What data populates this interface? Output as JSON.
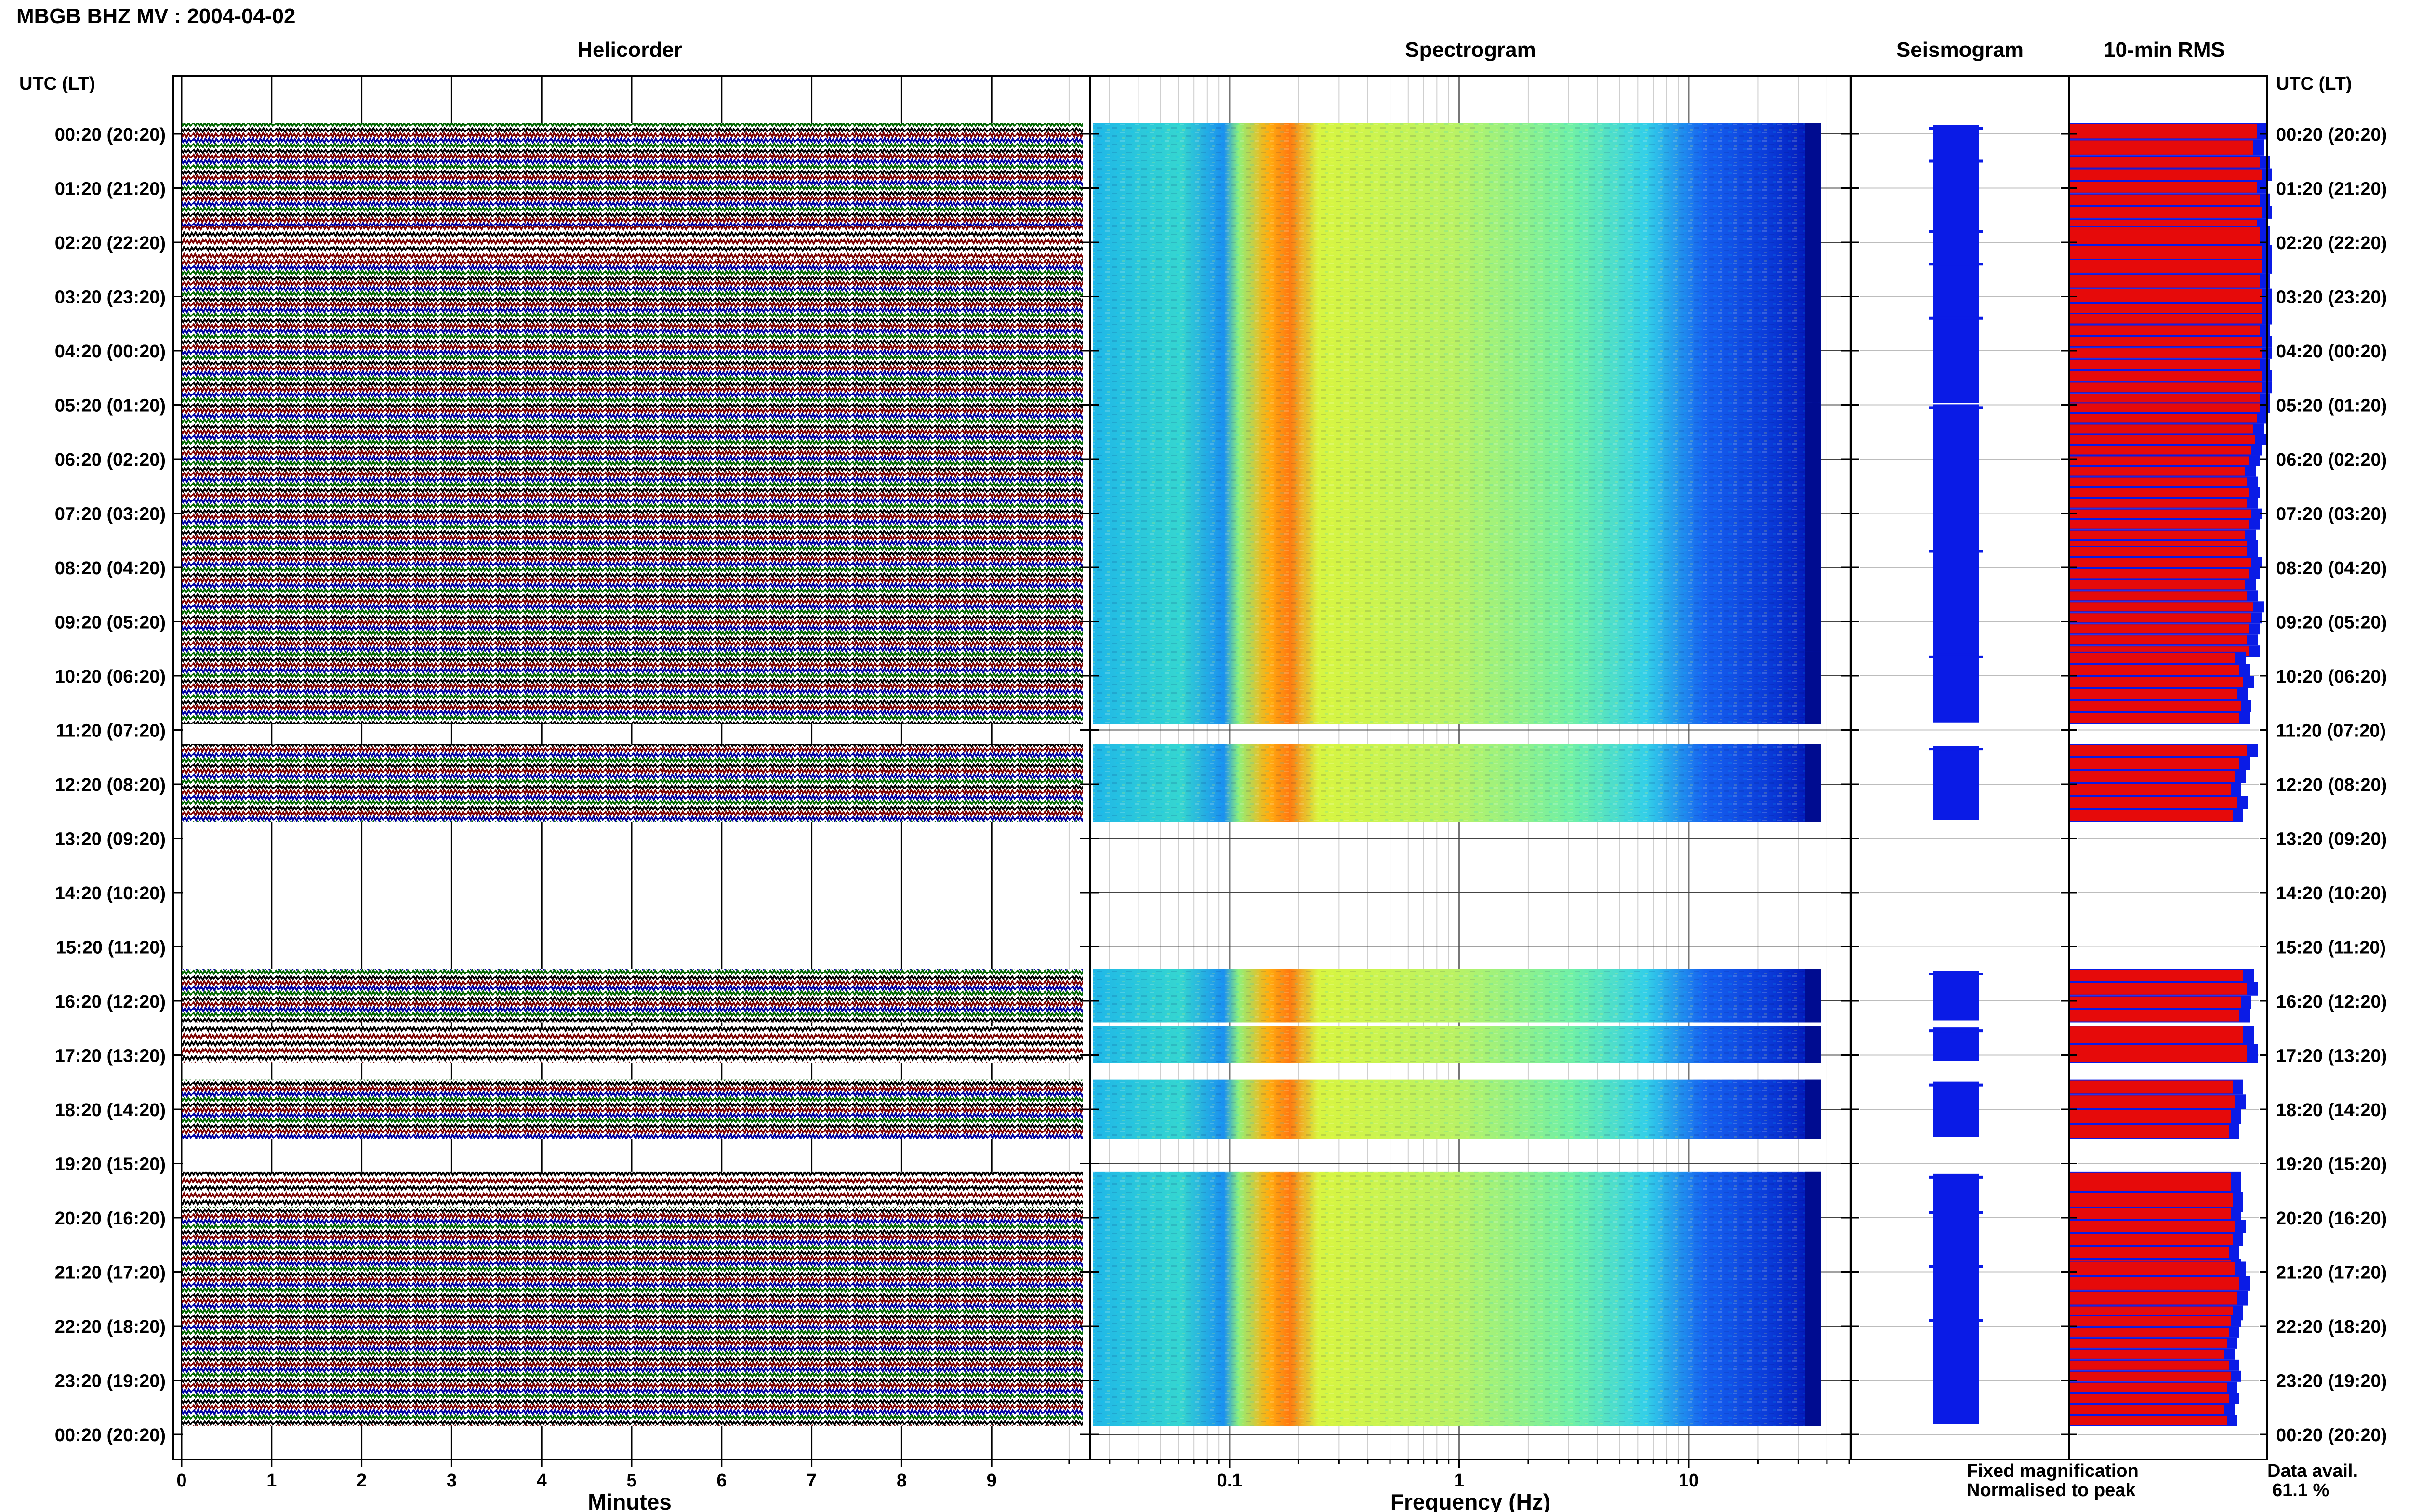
{
  "header": {
    "title": "MBGB BHZ MV : 2004-04-02"
  },
  "panels": {
    "helicorder_title": "Helicorder",
    "spectrogram_title": "Spectrogram",
    "seismogram_title": "Seismogram",
    "rms_title": "10-min RMS",
    "axis_left_label": "UTC (LT)",
    "axis_right_label": "UTC (LT)"
  },
  "legend": {
    "fixed": "Fixed magnification",
    "normalised": "Normalised to peak",
    "fixed_color": "#0a1be6",
    "normalised_color": "#e60a0a"
  },
  "availability": {
    "label": "Data avail.",
    "value": "61.1 %"
  },
  "chart_data": {
    "type": "table",
    "time_labels": [
      "00:20 (20:20)",
      "01:20 (21:20)",
      "02:20 (22:20)",
      "03:20 (23:20)",
      "04:20 (00:20)",
      "05:20 (01:20)",
      "06:20 (02:20)",
      "07:20 (03:20)",
      "08:20 (04:20)",
      "09:20 (05:20)",
      "10:20 (06:20)",
      "11:20 (07:20)",
      "12:20 (08:20)",
      "13:20 (09:20)",
      "14:20 (10:20)",
      "15:20 (11:20)",
      "16:20 (12:20)",
      "17:20 (13:20)",
      "18:20 (14:20)",
      "19:20 (15:20)",
      "20:20 (16:20)",
      "21:20 (17:20)",
      "22:20 (18:20)",
      "23:20 (19:20)",
      "00:20 (20:20)"
    ],
    "helicorder": {
      "xlabel": "Minutes",
      "xticks": [
        "0",
        "1",
        "2",
        "3",
        "4",
        "5",
        "6",
        "7",
        "8",
        "9"
      ],
      "xlim": [
        0,
        10
      ],
      "trace_colors": [
        "#000000",
        "#7a0000",
        "#0000a0",
        "#006400"
      ]
    },
    "spectrogram": {
      "xlabel": "Frequency (Hz)",
      "xscale": "log",
      "xlim": [
        0.02,
        50
      ],
      "xticks": [
        "0.1",
        "1",
        "10"
      ],
      "colormap": [
        "#00008b",
        "#0033ff",
        "#00bfff",
        "#7fffcf",
        "#dfff3f",
        "#ffd000",
        "#ff4000"
      ]
    },
    "rms": {
      "series": [
        {
          "name": "Fixed magnification",
          "color": "#0a1be6"
        },
        {
          "name": "Normalised to peak",
          "color": "#e60a0a"
        }
      ]
    },
    "data_availability_percent": 61.1,
    "segments": [
      {
        "start_hour": 0.0,
        "hours": 0.5,
        "rms_norm": [
          0.97,
          0.95,
          0.93
        ]
      },
      {
        "start_hour": 0.6,
        "hours": 1.0,
        "rms_norm": [
          0.98,
          0.99,
          0.97,
          0.98,
          0.99,
          0.97
        ]
      },
      {
        "start_hour": 1.9,
        "hours": 0.3,
        "rms_norm": [
          0.98,
          0.99
        ]
      },
      {
        "start_hour": 2.5,
        "hours": 0.7,
        "rms_norm": [
          0.99,
          0.98,
          0.99,
          0.99
        ]
      },
      {
        "start_hour": 3.5,
        "hours": 1.3,
        "rms_norm": [
          0.99,
          0.98,
          0.99,
          0.99,
          0.98,
          0.99,
          0.99,
          0.98
        ]
      },
      {
        "start_hour": 5.15,
        "hours": 2.35,
        "rms_norm": [
          0.98,
          0.97,
          0.95,
          0.96,
          0.94,
          0.93,
          0.91,
          0.92,
          0.93,
          0.92,
          0.94,
          0.93,
          0.91,
          0.92
        ]
      },
      {
        "start_hour": 7.8,
        "hours": 1.65,
        "rms_norm": [
          0.92,
          0.94,
          0.93,
          0.91,
          0.92,
          0.95,
          0.94,
          0.93,
          0.92,
          0.93
        ]
      },
      {
        "start_hour": 9.75,
        "hours": 0.95,
        "rms_norm": [
          0.86,
          0.88,
          0.9,
          0.87,
          0.89,
          0.88
        ]
      },
      {
        "start_hour": 11.45,
        "hours": 1.05,
        "rms_norm": [
          0.92,
          0.88,
          0.86,
          0.84,
          0.87,
          0.85
        ]
      },
      {
        "start_hour": 15.6,
        "hours": 0.6,
        "rms_norm": [
          0.9,
          0.92,
          0.89,
          0.88
        ]
      },
      {
        "start_hour": 16.65,
        "hours": 0.3,
        "rms_norm": [
          0.9,
          0.92
        ]
      },
      {
        "start_hour": 17.65,
        "hours": 0.7,
        "rms_norm": [
          0.85,
          0.86,
          0.84,
          0.83
        ]
      },
      {
        "start_hour": 19.35,
        "hours": 0.35,
        "rms_norm": [
          0.84,
          0.85
        ]
      },
      {
        "start_hour": 20.0,
        "hours": 0.8,
        "rms_norm": [
          0.84,
          0.86,
          0.85,
          0.83,
          0.84
        ]
      },
      {
        "start_hour": 21.0,
        "hours": 0.7,
        "rms_norm": [
          0.86,
          0.88,
          0.87,
          0.85
        ]
      },
      {
        "start_hour": 22.0,
        "hours": 1.65,
        "rms_norm": [
          0.84,
          0.83,
          0.82,
          0.81,
          0.83,
          0.84,
          0.82,
          0.83,
          0.81,
          0.82
        ]
      }
    ]
  }
}
